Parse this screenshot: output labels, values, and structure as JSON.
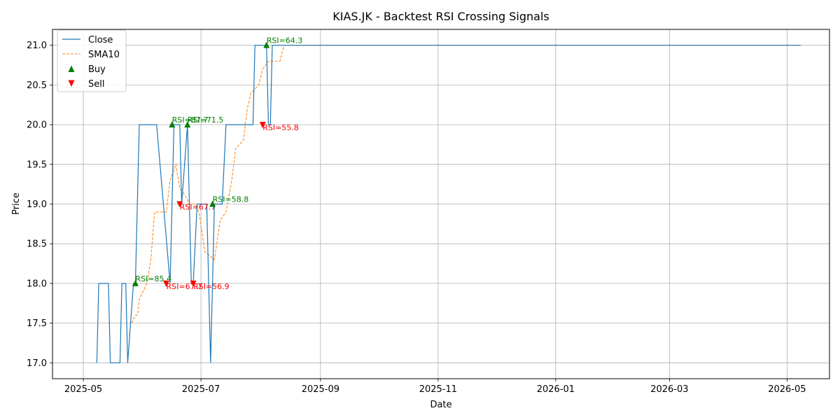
{
  "chart_data": {
    "type": "line",
    "title": "KIAS.JK - Backtest RSI Crossing Signals",
    "xlabel": "Date",
    "ylabel": "Price",
    "x_axis": {
      "type": "date",
      "range": [
        "2025-04-15",
        "2026-05-23"
      ],
      "ticks": [
        "2025-05-01",
        "2025-07-01",
        "2025-09-01",
        "2025-11-01",
        "2026-01-01",
        "2026-03-01",
        "2026-05-01"
      ],
      "tick_labels": [
        "2025-05",
        "2025-07",
        "2025-09",
        "2025-11",
        "2026-01",
        "2026-03",
        "2026-05"
      ]
    },
    "y_axis": {
      "range": [
        16.8,
        21.2
      ],
      "ticks": [
        17.0,
        17.5,
        18.0,
        18.5,
        19.0,
        19.5,
        20.0,
        20.5,
        21.0
      ],
      "tick_labels": [
        "17.0",
        "17.5",
        "18.0",
        "18.5",
        "19.0",
        "19.5",
        "20.0",
        "20.5",
        "21.0"
      ]
    },
    "grid": true,
    "legend": {
      "placement": "top-left",
      "entries": [
        "Close",
        "SMA10",
        "Buy",
        "Sell"
      ]
    },
    "colors": {
      "close": "#1f77b4",
      "sma": "#ff7f0e",
      "buy": "#008000",
      "sell": "#ff0000"
    },
    "series": [
      {
        "name": "Close",
        "style": "solid",
        "points": [
          [
            "2025-05-08",
            17.0
          ],
          [
            "2025-05-09",
            18.0
          ],
          [
            "2025-05-14",
            18.0
          ],
          [
            "2025-05-15",
            17.0
          ],
          [
            "2025-05-20",
            17.0
          ],
          [
            "2025-05-21",
            18.0
          ],
          [
            "2025-05-23",
            18.0
          ],
          [
            "2025-05-24",
            17.0
          ],
          [
            "2025-05-27",
            18.0
          ],
          [
            "2025-05-28",
            18.0
          ],
          [
            "2025-05-30",
            20.0
          ],
          [
            "2025-06-08",
            20.0
          ],
          [
            "2025-06-15",
            18.0
          ],
          [
            "2025-06-17",
            20.0
          ],
          [
            "2025-06-20",
            20.0
          ],
          [
            "2025-06-21",
            19.0
          ],
          [
            "2025-06-24",
            20.0
          ],
          [
            "2025-06-26",
            18.0
          ],
          [
            "2025-06-27",
            18.0
          ],
          [
            "2025-06-29",
            19.0
          ],
          [
            "2025-07-04",
            19.0
          ],
          [
            "2025-07-06",
            17.0
          ],
          [
            "2025-07-08",
            19.0
          ],
          [
            "2025-07-12",
            19.0
          ],
          [
            "2025-07-14",
            20.0
          ],
          [
            "2025-07-28",
            20.0
          ],
          [
            "2025-07-29",
            21.0
          ],
          [
            "2025-08-04",
            21.0
          ],
          [
            "2025-08-05",
            20.0
          ],
          [
            "2025-08-06",
            20.0
          ],
          [
            "2025-08-07",
            21.0
          ],
          [
            "2026-05-08",
            21.0
          ]
        ]
      },
      {
        "name": "SMA10",
        "style": "dashed",
        "points": [
          [
            "2025-05-26",
            17.5
          ],
          [
            "2025-05-28",
            17.6
          ],
          [
            "2025-05-29",
            17.6
          ],
          [
            "2025-05-30",
            17.8
          ],
          [
            "2025-06-03",
            18.0
          ],
          [
            "2025-06-05",
            18.3
          ],
          [
            "2025-06-07",
            18.9
          ],
          [
            "2025-06-13",
            18.9
          ],
          [
            "2025-06-15",
            19.3
          ],
          [
            "2025-06-18",
            19.5
          ],
          [
            "2025-06-20",
            19.2
          ],
          [
            "2025-06-23",
            19.1
          ],
          [
            "2025-06-25",
            19.0
          ],
          [
            "2025-06-28",
            19.0
          ],
          [
            "2025-06-30",
            18.9
          ],
          [
            "2025-07-03",
            18.4
          ],
          [
            "2025-07-08",
            18.3
          ],
          [
            "2025-07-11",
            18.8
          ],
          [
            "2025-07-14",
            18.9
          ],
          [
            "2025-07-17",
            19.3
          ],
          [
            "2025-07-19",
            19.7
          ],
          [
            "2025-07-23",
            19.8
          ],
          [
            "2025-07-25",
            20.2
          ],
          [
            "2025-07-27",
            20.4
          ],
          [
            "2025-07-31",
            20.5
          ],
          [
            "2025-08-02",
            20.7
          ],
          [
            "2025-08-05",
            20.8
          ],
          [
            "2025-08-11",
            20.8
          ],
          [
            "2025-08-13",
            21.0
          ],
          [
            "2026-05-08",
            21.0
          ]
        ]
      }
    ],
    "signals": [
      {
        "type": "Buy",
        "date": "2025-05-28",
        "price": 18.0,
        "label": "RSI=85.4"
      },
      {
        "type": "Sell",
        "date": "2025-06-13",
        "price": 18.0,
        "label": "RSI=67.7"
      },
      {
        "type": "Buy",
        "date": "2025-06-16",
        "price": 20.0,
        "label": "RSI=87.7"
      },
      {
        "type": "Sell",
        "date": "2025-06-20",
        "price": 19.0,
        "label": "RSI=67.7"
      },
      {
        "type": "Buy",
        "date": "2025-06-24",
        "price": 20.0,
        "label": "RSI=71.5"
      },
      {
        "type": "Sell",
        "date": "2025-06-27",
        "price": 18.0,
        "label": "RSI=56.9"
      },
      {
        "type": "Buy",
        "date": "2025-07-07",
        "price": 19.0,
        "label": "RSI=58.8"
      },
      {
        "type": "Sell",
        "date": "2025-08-02",
        "price": 20.0,
        "label": "RSI=55.8"
      },
      {
        "type": "Buy",
        "date": "2025-08-04",
        "price": 21.0,
        "label": "RSI=64.3"
      }
    ]
  }
}
